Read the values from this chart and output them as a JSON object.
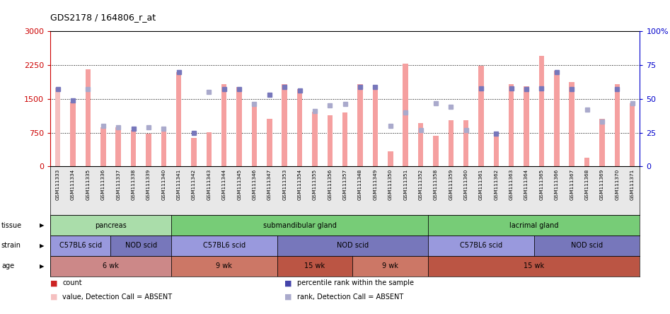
{
  "title": "GDS2178 / 164806_r_at",
  "samples": [
    "GSM111333",
    "GSM111334",
    "GSM111335",
    "GSM111336",
    "GSM111337",
    "GSM111338",
    "GSM111339",
    "GSM111340",
    "GSM111341",
    "GSM111342",
    "GSM111343",
    "GSM111344",
    "GSM111345",
    "GSM111346",
    "GSM111347",
    "GSM111353",
    "GSM111354",
    "GSM111355",
    "GSM111356",
    "GSM111357",
    "GSM111348",
    "GSM111349",
    "GSM111350",
    "GSM111351",
    "GSM111352",
    "GSM111358",
    "GSM111359",
    "GSM111360",
    "GSM111361",
    "GSM111362",
    "GSM111363",
    "GSM111364",
    "GSM111365",
    "GSM111366",
    "GSM111367",
    "GSM111368",
    "GSM111369",
    "GSM111370",
    "GSM111371"
  ],
  "bar_values": [
    1750,
    1430,
    2160,
    870,
    870,
    800,
    720,
    880,
    2100,
    630,
    760,
    1820,
    1770,
    1340,
    1060,
    1820,
    1720,
    1220,
    1130,
    1200,
    1830,
    1800,
    330,
    2280,
    960,
    680,
    1020,
    1020,
    2240,
    770,
    1820,
    1780,
    2450,
    2130,
    1870,
    200,
    1060,
    1820,
    1410
  ],
  "dot_values_pct": [
    57,
    49,
    57,
    30,
    29,
    28,
    29,
    28,
    70,
    25,
    55,
    57,
    57,
    46,
    53,
    59,
    56,
    41,
    45,
    46,
    59,
    59,
    30,
    40,
    27,
    47,
    44,
    27,
    58,
    24,
    58,
    57,
    58,
    70,
    57,
    42,
    33,
    57,
    47
  ],
  "bar_absent": [
    true,
    false,
    false,
    false,
    false,
    false,
    false,
    false,
    false,
    false,
    false,
    false,
    false,
    false,
    false,
    false,
    false,
    false,
    false,
    false,
    false,
    false,
    false,
    false,
    false,
    false,
    false,
    false,
    false,
    false,
    false,
    false,
    false,
    false,
    false,
    false,
    false,
    false,
    false
  ],
  "dot_absent": [
    false,
    false,
    true,
    true,
    true,
    false,
    true,
    true,
    false,
    false,
    true,
    false,
    false,
    true,
    false,
    false,
    false,
    true,
    true,
    true,
    false,
    false,
    true,
    true,
    true,
    true,
    true,
    true,
    false,
    false,
    false,
    false,
    false,
    false,
    false,
    true,
    true,
    false,
    true
  ],
  "ylim_left": [
    0,
    3000
  ],
  "ylim_right": [
    0,
    100
  ],
  "yticks_left": [
    0,
    750,
    1500,
    2250,
    3000
  ],
  "yticks_right": [
    0,
    25,
    50,
    75,
    100
  ],
  "bar_color": "#f5a0a0",
  "bar_absent_color": "#f5c0c0",
  "dot_color": "#7777bb",
  "dot_absent_color": "#aaaacc",
  "left_axis_color": "#cc0000",
  "right_axis_color": "#0000cc",
  "tissue_groups": [
    {
      "label": "pancreas",
      "start": 0,
      "end": 8,
      "color": "#aaddaa"
    },
    {
      "label": "submandibular gland",
      "start": 8,
      "end": 25,
      "color": "#77cc77"
    },
    {
      "label": "lacrimal gland",
      "start": 25,
      "end": 39,
      "color": "#77cc77"
    }
  ],
  "strain_groups": [
    {
      "label": "C57BL6 scid",
      "start": 0,
      "end": 4,
      "color": "#9999dd"
    },
    {
      "label": "NOD scid",
      "start": 4,
      "end": 8,
      "color": "#7777bb"
    },
    {
      "label": "C57BL6 scid",
      "start": 8,
      "end": 15,
      "color": "#9999dd"
    },
    {
      "label": "NOD scid",
      "start": 15,
      "end": 25,
      "color": "#7777bb"
    },
    {
      "label": "C57BL6 scid",
      "start": 25,
      "end": 32,
      "color": "#9999dd"
    },
    {
      "label": "NOD scid",
      "start": 32,
      "end": 39,
      "color": "#7777bb"
    }
  ],
  "age_groups": [
    {
      "label": "6 wk",
      "start": 0,
      "end": 8,
      "color": "#cc8888"
    },
    {
      "label": "9 wk",
      "start": 8,
      "end": 15,
      "color": "#cc7766"
    },
    {
      "label": "15 wk",
      "start": 15,
      "end": 20,
      "color": "#bb5544"
    },
    {
      "label": "9 wk",
      "start": 20,
      "end": 25,
      "color": "#cc7766"
    },
    {
      "label": "15 wk",
      "start": 25,
      "end": 39,
      "color": "#bb5544"
    }
  ],
  "legend_items": [
    {
      "label": "count",
      "color": "#cc2222"
    },
    {
      "label": "percentile rank within the sample",
      "color": "#4444aa"
    },
    {
      "label": "value, Detection Call = ABSENT",
      "color": "#f5c0c0"
    },
    {
      "label": "rank, Detection Call = ABSENT",
      "color": "#aaaacc"
    }
  ]
}
